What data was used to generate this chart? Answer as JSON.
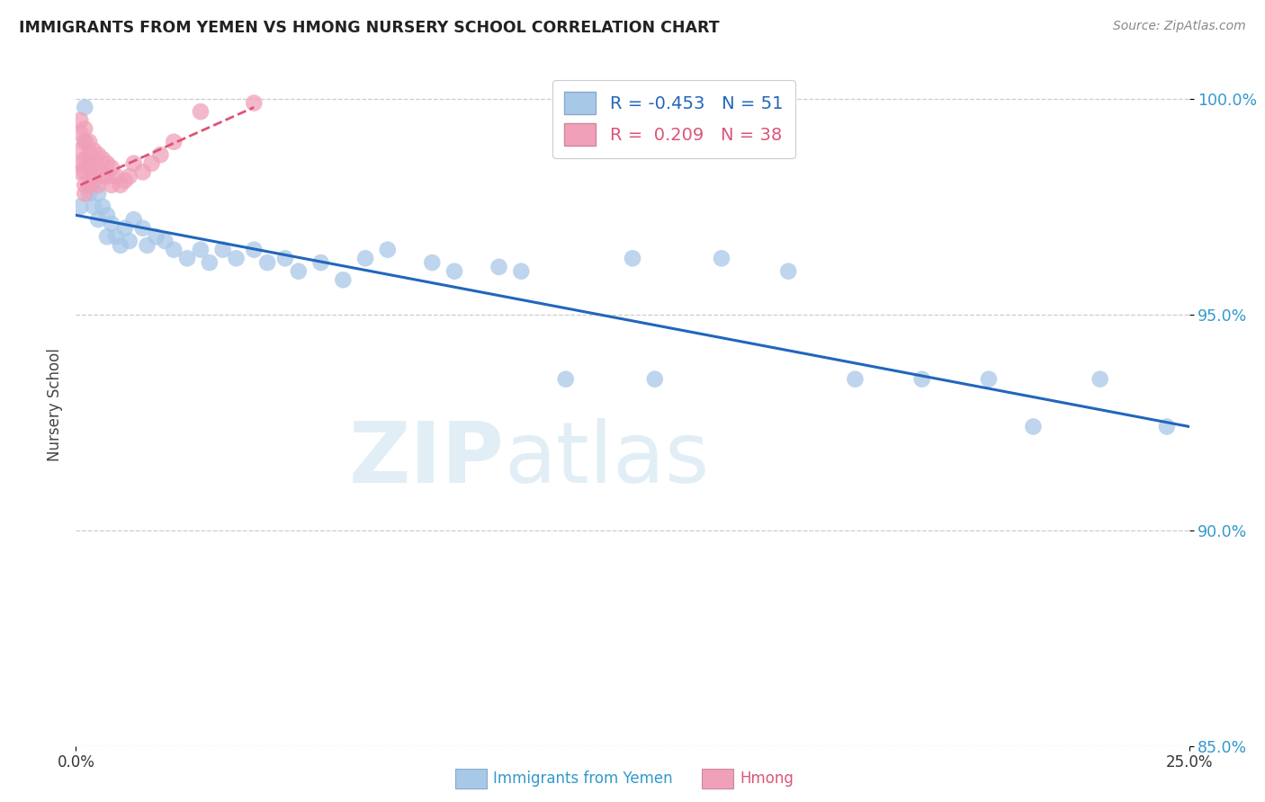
{
  "title": "IMMIGRANTS FROM YEMEN VS HMONG NURSERY SCHOOL CORRELATION CHART",
  "source": "Source: ZipAtlas.com",
  "ylabel": "Nursery School",
  "xlim": [
    0.0,
    0.25
  ],
  "ylim": [
    0.865,
    1.008
  ],
  "legend_blue_r": "-0.453",
  "legend_blue_n": "51",
  "legend_pink_r": "0.209",
  "legend_pink_n": "38",
  "blue_color": "#a8c8e8",
  "pink_color": "#f0a0b8",
  "blue_line_color": "#2266bb",
  "pink_line_color": "#dd5577",
  "ytick_values": [
    1.0,
    0.95,
    0.9,
    0.85
  ],
  "ytick_labels": [
    "100.0%",
    "95.0%",
    "90.0%",
    "85.0%"
  ],
  "blue_x": [
    0.001,
    0.002,
    0.002,
    0.003,
    0.003,
    0.004,
    0.004,
    0.005,
    0.005,
    0.006,
    0.007,
    0.007,
    0.008,
    0.009,
    0.01,
    0.011,
    0.012,
    0.013,
    0.015,
    0.016,
    0.018,
    0.02,
    0.022,
    0.025,
    0.028,
    0.03,
    0.033,
    0.036,
    0.04,
    0.043,
    0.047,
    0.05,
    0.055,
    0.06,
    0.065,
    0.07,
    0.08,
    0.085,
    0.095,
    0.1,
    0.11,
    0.125,
    0.13,
    0.145,
    0.16,
    0.175,
    0.19,
    0.205,
    0.215,
    0.23,
    0.245
  ],
  "blue_y": [
    0.975,
    0.998,
    0.99,
    0.985,
    0.978,
    0.982,
    0.975,
    0.978,
    0.972,
    0.975,
    0.973,
    0.968,
    0.971,
    0.968,
    0.966,
    0.97,
    0.967,
    0.972,
    0.97,
    0.966,
    0.968,
    0.967,
    0.965,
    0.963,
    0.965,
    0.962,
    0.965,
    0.963,
    0.965,
    0.962,
    0.963,
    0.96,
    0.962,
    0.958,
    0.963,
    0.965,
    0.962,
    0.96,
    0.961,
    0.96,
    0.935,
    0.963,
    0.935,
    0.963,
    0.96,
    0.935,
    0.935,
    0.935,
    0.924,
    0.935,
    0.924
  ],
  "pink_x": [
    0.001,
    0.001,
    0.001,
    0.001,
    0.001,
    0.002,
    0.002,
    0.002,
    0.002,
    0.002,
    0.002,
    0.003,
    0.003,
    0.003,
    0.003,
    0.004,
    0.004,
    0.004,
    0.005,
    0.005,
    0.005,
    0.006,
    0.006,
    0.007,
    0.007,
    0.008,
    0.008,
    0.009,
    0.01,
    0.011,
    0.012,
    0.013,
    0.015,
    0.017,
    0.019,
    0.022,
    0.028,
    0.04
  ],
  "pink_y": [
    0.995,
    0.992,
    0.988,
    0.985,
    0.983,
    0.993,
    0.99,
    0.986,
    0.983,
    0.98,
    0.978,
    0.99,
    0.987,
    0.984,
    0.98,
    0.988,
    0.985,
    0.981,
    0.987,
    0.984,
    0.98,
    0.986,
    0.982,
    0.985,
    0.982,
    0.984,
    0.98,
    0.982,
    0.98,
    0.981,
    0.982,
    0.985,
    0.983,
    0.985,
    0.987,
    0.99,
    0.997,
    0.999
  ],
  "blue_trend_x0": 0.0,
  "blue_trend_y0": 0.973,
  "blue_trend_x1": 0.25,
  "blue_trend_y1": 0.924,
  "pink_trend_x0": 0.001,
  "pink_trend_y0": 0.98,
  "pink_trend_x1": 0.04,
  "pink_trend_y1": 0.998
}
